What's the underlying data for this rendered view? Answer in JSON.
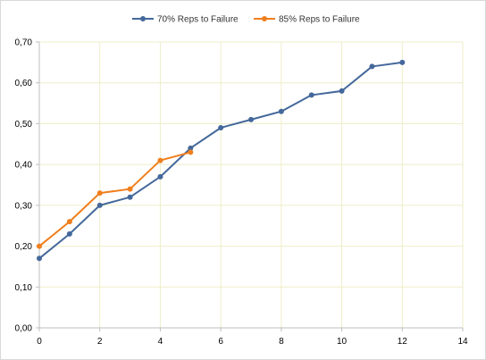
{
  "chart_data": {
    "type": "line",
    "title": "",
    "xlabel": "",
    "ylabel": "",
    "xlim": [
      0,
      14
    ],
    "ylim": [
      0,
      0.7
    ],
    "x_ticks": [
      0,
      2,
      4,
      6,
      8,
      10,
      12,
      14
    ],
    "x_tick_labels": [
      "0",
      "2",
      "4",
      "6",
      "8",
      "10",
      "12",
      "14"
    ],
    "y_ticks": [
      0,
      0.1,
      0.2,
      0.3,
      0.4,
      0.5,
      0.6,
      0.7
    ],
    "y_tick_labels": [
      "0,00",
      "0,10",
      "0,20",
      "0,30",
      "0,40",
      "0,50",
      "0,60",
      "0,70"
    ],
    "grid": true,
    "grid_color": "#eeeec8",
    "legend_position": "top",
    "series": [
      {
        "name": "70% Reps to Failure",
        "color": "#44689b",
        "x": [
          0,
          1,
          2,
          3,
          4,
          5,
          6,
          7,
          8,
          9,
          10,
          11,
          12
        ],
        "y": [
          0.17,
          0.23,
          0.3,
          0.32,
          0.37,
          0.44,
          0.49,
          0.51,
          0.53,
          0.57,
          0.58,
          0.64,
          0.65
        ]
      },
      {
        "name": "85% Reps to Failure",
        "color": "#f07f1e",
        "x": [
          0,
          1,
          2,
          3,
          4,
          5
        ],
        "y": [
          0.2,
          0.26,
          0.33,
          0.34,
          0.41,
          0.43
        ]
      }
    ]
  }
}
